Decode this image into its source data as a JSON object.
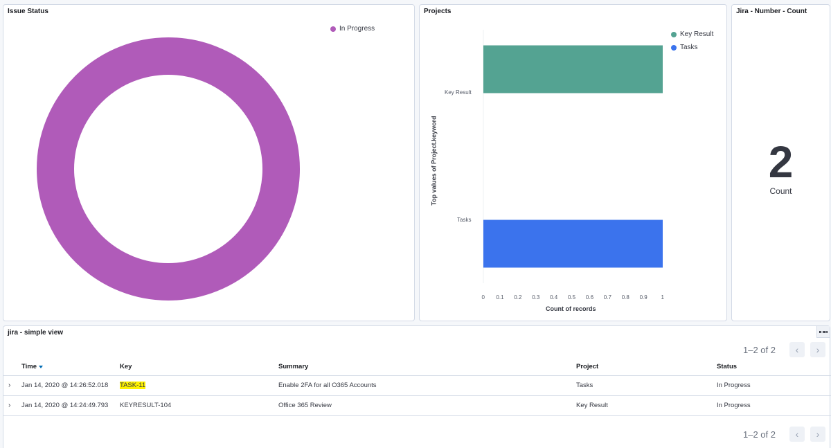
{
  "panels": {
    "issue_status": {
      "title": "Issue Status"
    },
    "projects": {
      "title": "Projects"
    },
    "count": {
      "title": "Jira - Number - Count",
      "value": "2",
      "label": "Count"
    },
    "table": {
      "title": "jira - simple view"
    }
  },
  "colors": {
    "in_progress": "#b05bb9",
    "key_result": "#54a392",
    "tasks": "#3b73ed"
  },
  "chart_data": [
    {
      "type": "pie",
      "donut": true,
      "title": "Issue Status",
      "slices": [
        {
          "label": "In Progress",
          "value": 2
        }
      ],
      "legend": [
        "In Progress"
      ],
      "legend_position": "top-right"
    },
    {
      "type": "bar",
      "orientation": "horizontal",
      "title": "Projects",
      "categories": [
        "Key Result",
        "Tasks"
      ],
      "series": [
        {
          "name": "Key Result",
          "values": [
            1,
            0
          ]
        },
        {
          "name": "Tasks",
          "values": [
            0,
            1
          ]
        }
      ],
      "xlabel": "Count of records",
      "ylabel": "Top values of Project.keyword",
      "xlim": [
        0,
        1
      ],
      "xticks": [
        "0",
        "0.1",
        "0.2",
        "0.3",
        "0.4",
        "0.5",
        "0.6",
        "0.7",
        "0.8",
        "0.9",
        "1"
      ],
      "legend": [
        "Key Result",
        "Tasks"
      ],
      "legend_position": "top-right"
    }
  ],
  "table": {
    "pagination": "1–2 of 2",
    "columns": [
      "Time",
      "Key",
      "Summary",
      "Project",
      "Status"
    ],
    "rows": [
      {
        "time": "Jan 14, 2020 @ 14:26:52.018",
        "key": "TASK-11",
        "summary": "Enable 2FA for all O365 Accounts",
        "project": "Tasks",
        "status": "In Progress"
      },
      {
        "time": "Jan 14, 2020 @ 14:24:49.793",
        "key": "KEYRESULT-104",
        "summary": "Office 365 Review",
        "project": "Key Result",
        "status": "In Progress"
      }
    ]
  }
}
